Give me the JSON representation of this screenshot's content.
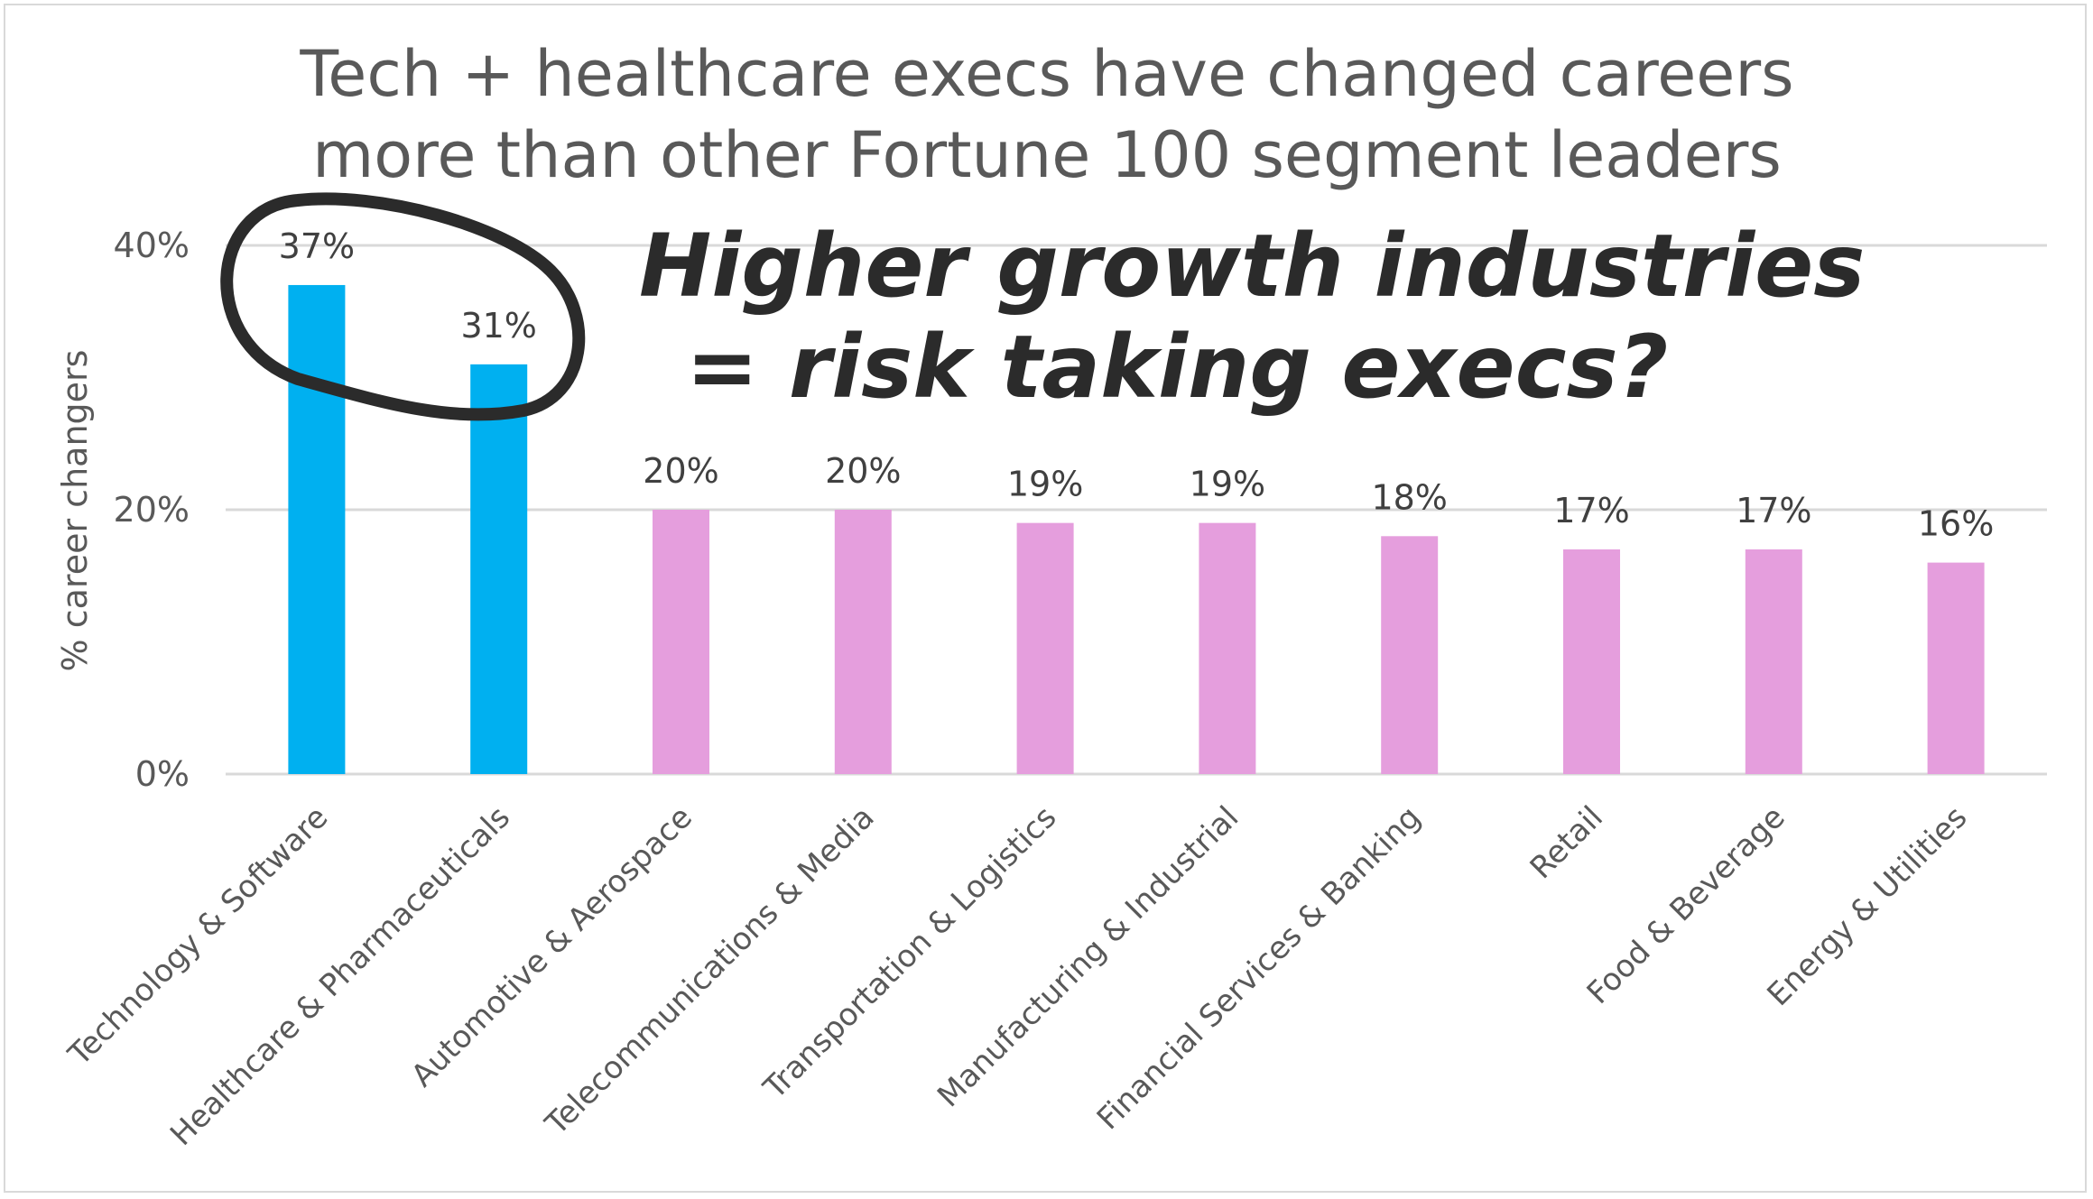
{
  "chart_data": {
    "type": "bar",
    "title_lines": [
      "Tech + healthcare execs have changed careers",
      "more than other Fortune 100 segment leaders"
    ],
    "ylabel": "% career changers",
    "xlabel": "",
    "ylim": [
      0,
      40
    ],
    "yticks": [
      "0%",
      "20%",
      "40%"
    ],
    "ytick_values": [
      0,
      20,
      40
    ],
    "grid": true,
    "legend": "none",
    "categories": [
      "Technology & Software",
      "Healthcare & Pharmaceuticals",
      "Automotive & Aerospace",
      "Telecommunications & Media",
      "Transportation & Logistics",
      "Manufacturing & Industrial",
      "Financial Services & Banking",
      "Retail",
      "Food & Beverage",
      "Energy & Utilities"
    ],
    "values": [
      37,
      31,
      20,
      20,
      19,
      19,
      18,
      17,
      17,
      16
    ],
    "data_labels": [
      "37%",
      "31%",
      "20%",
      "20%",
      "19%",
      "19%",
      "18%",
      "17%",
      "17%",
      "16%"
    ],
    "highlight_count": 2,
    "colors": {
      "highlight": "#00b0f0",
      "other": "#e59edd",
      "gridline": "#d9d9d9",
      "annotation": "#2b2b2b"
    },
    "annotation": {
      "lines": [
        "Higher growth industries",
        "= risk taking execs?"
      ],
      "circled_categories": [
        "Technology & Software",
        "Healthcare & Pharmaceuticals"
      ]
    }
  }
}
